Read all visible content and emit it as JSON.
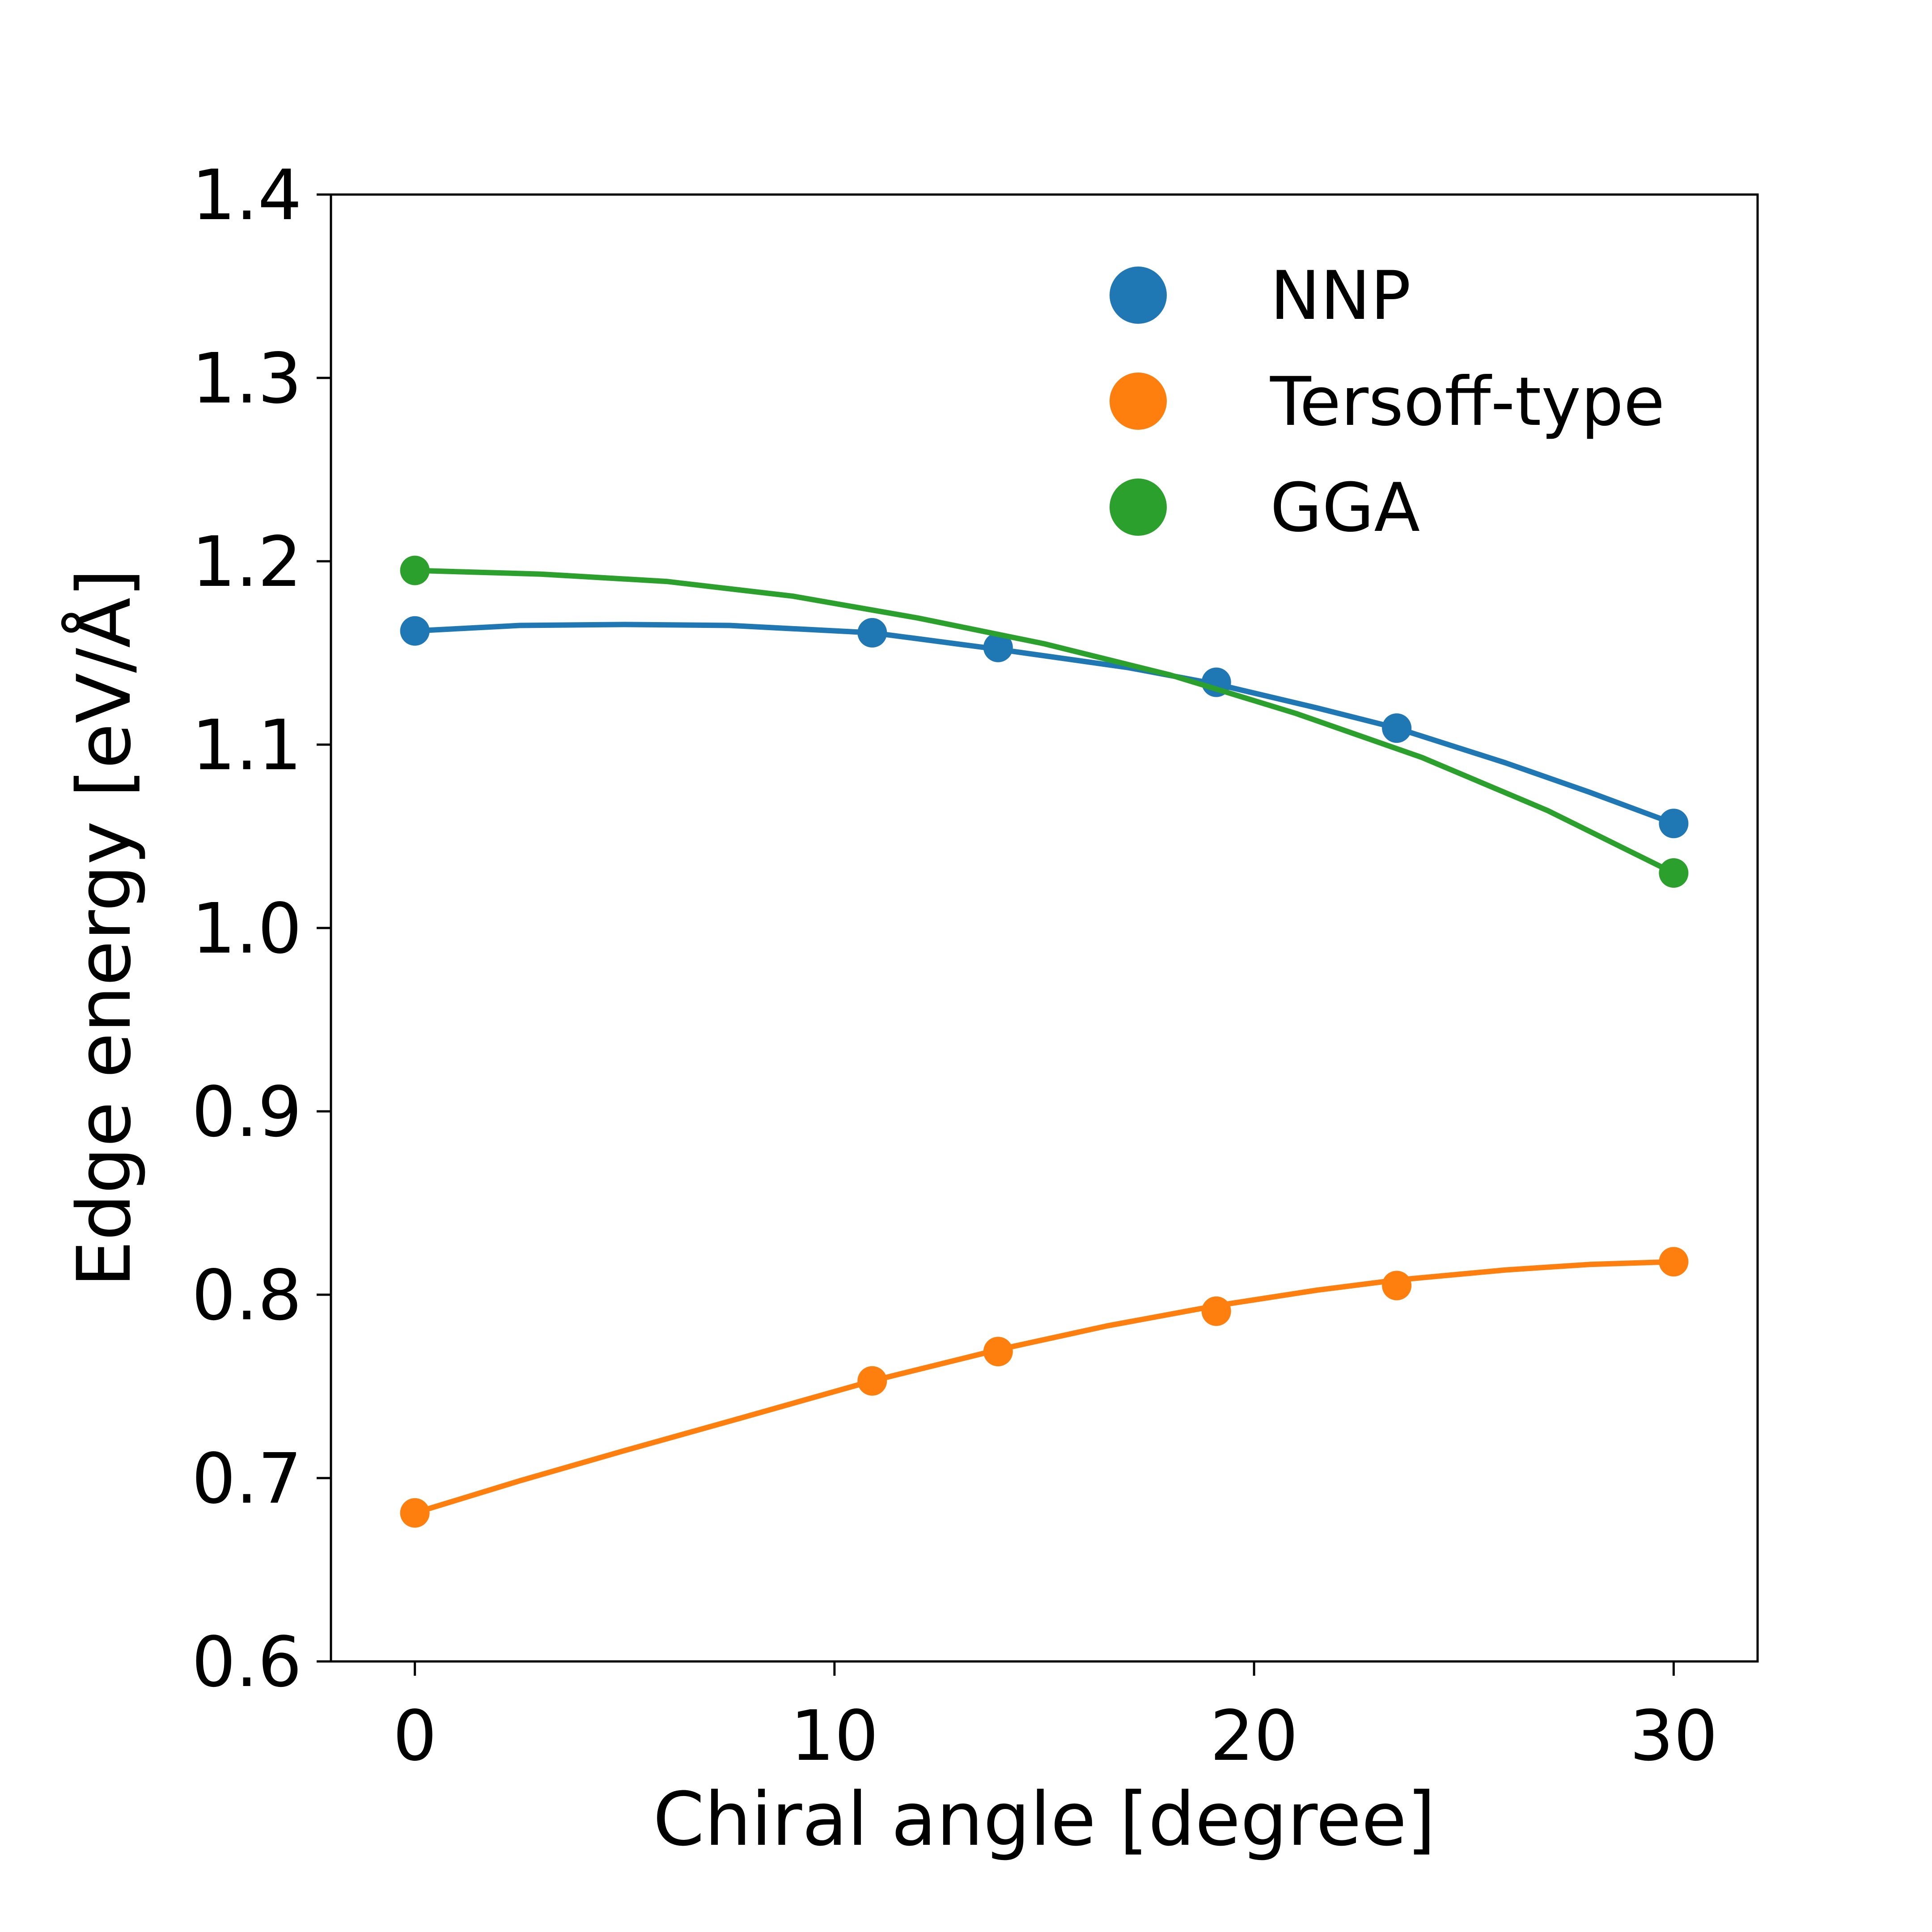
{
  "chart_data": {
    "type": "line",
    "title": "",
    "xlabel": "Chiral angle [degree]",
    "ylabel": "Edge energy [eV/Å]",
    "xlim": [
      -2,
      32
    ],
    "ylim": [
      0.6,
      1.4
    ],
    "xticks": [
      0,
      10,
      20,
      30
    ],
    "xtick_labels": [
      "0",
      "10",
      "20",
      "30"
    ],
    "yticks": [
      0.6,
      0.7,
      0.8,
      0.9,
      1.0,
      1.1,
      1.2,
      1.3,
      1.4
    ],
    "ytick_labels": [
      "0.6",
      "0.7",
      "0.8",
      "0.9",
      "1.0",
      "1.1",
      "1.2",
      "1.3",
      "1.4"
    ],
    "grid": false,
    "legend_position": "top-right",
    "series": [
      {
        "name": "NNP",
        "color": "#1f77b4",
        "x": [
          0,
          10.9,
          13.9,
          19.1,
          23.4,
          30
        ],
        "y": [
          1.162,
          1.161,
          1.153,
          1.134,
          1.109,
          1.057
        ],
        "fit": [
          [
            0,
            1.162
          ],
          [
            2.5,
            1.165
          ],
          [
            5,
            1.1655
          ],
          [
            7.5,
            1.165
          ],
          [
            10.9,
            1.161
          ],
          [
            13.9,
            1.152
          ],
          [
            17,
            1.142
          ],
          [
            19.1,
            1.133
          ],
          [
            21.5,
            1.12
          ],
          [
            23.4,
            1.109
          ],
          [
            26,
            1.09
          ],
          [
            28,
            1.074
          ],
          [
            30,
            1.057
          ]
        ]
      },
      {
        "name": "Tersoff-type",
        "color": "#ff7f0e",
        "x": [
          0,
          10.9,
          13.9,
          19.1,
          23.4,
          30
        ],
        "y": [
          0.681,
          0.753,
          0.769,
          0.791,
          0.805,
          0.818
        ],
        "fit": [
          [
            0,
            0.681
          ],
          [
            2.5,
            0.6985
          ],
          [
            5,
            0.715
          ],
          [
            7.5,
            0.731
          ],
          [
            10.9,
            0.753
          ],
          [
            13.9,
            0.77
          ],
          [
            16.5,
            0.783
          ],
          [
            19.1,
            0.794
          ],
          [
            21.5,
            0.8025
          ],
          [
            23.4,
            0.808
          ],
          [
            26,
            0.8135
          ],
          [
            28,
            0.8165
          ],
          [
            30,
            0.818
          ]
        ]
      },
      {
        "name": "GGA",
        "color": "#2ca02c",
        "x": [
          0,
          30
        ],
        "y": [
          1.195,
          1.03
        ],
        "fit": [
          [
            0,
            1.195
          ],
          [
            3,
            1.193
          ],
          [
            6,
            1.189
          ],
          [
            9,
            1.181
          ],
          [
            12,
            1.169
          ],
          [
            15,
            1.155
          ],
          [
            18,
            1.138
          ],
          [
            21,
            1.117
          ],
          [
            24,
            1.093
          ],
          [
            27,
            1.064
          ],
          [
            30,
            1.03
          ]
        ]
      }
    ]
  }
}
